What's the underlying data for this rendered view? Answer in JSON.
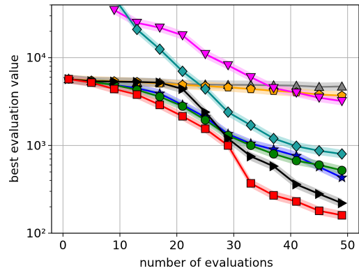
{
  "chart_data": {
    "type": "line",
    "xlabel": "number of evaluations",
    "ylabel": "best evaluation value",
    "xlim": [
      -2,
      52
    ],
    "ylim": [
      100,
      40000
    ],
    "yscale": "log",
    "grid": true,
    "x_ticks": [
      0,
      10,
      20,
      30,
      40,
      50
    ],
    "x_tick_labels": [
      "0",
      "10",
      "20",
      "30",
      "40",
      "50"
    ],
    "y_ticks": [
      100,
      1000,
      10000
    ],
    "y_tick_labels": [
      "10²",
      "10³",
      "10⁴"
    ],
    "series": [
      {
        "marker": "triangle-up",
        "color": "#808080",
        "markerColor": "#808080",
        "bandColor": "#b0b0b0",
        "x": [
          1,
          5,
          9,
          13,
          17,
          21,
          25,
          29,
          33,
          37,
          41,
          45,
          49
        ],
        "y": [
          5700,
          5400,
          5300,
          5250,
          5200,
          5000,
          4950,
          4900,
          4900,
          4850,
          4800,
          4650,
          4700
        ]
      },
      {
        "marker": "pentagon",
        "color": "#ffa500",
        "markerColor": "#ffa500",
        "bandColor": "#ffcc80",
        "x": [
          1,
          5,
          9,
          13,
          17,
          21,
          25,
          29,
          33,
          37,
          41,
          45,
          49
        ],
        "y": [
          5700,
          5500,
          5400,
          5300,
          5100,
          4900,
          4750,
          4600,
          4400,
          4200,
          4050,
          3800,
          3700
        ]
      },
      {
        "marker": "triangle-down",
        "color": "#ff00ff",
        "markerColor": "#ff00ff",
        "bandColor": "#ff9bff",
        "x": [
          9,
          13,
          17,
          21,
          25,
          29,
          33,
          37,
          41,
          45,
          49
        ],
        "y": [
          35000,
          25000,
          22000,
          18000,
          11000,
          8200,
          6000,
          4500,
          4000,
          3500,
          3200
        ]
      },
      {
        "marker": "diamond",
        "color": "#008b8b",
        "markerColor": "#20a0a0",
        "bandColor": "#7ecfcf",
        "x": [
          9,
          13,
          17,
          21,
          25,
          29,
          33,
          37,
          41,
          45,
          49
        ],
        "y": [
          48000,
          21000,
          12500,
          7000,
          4400,
          2400,
          1700,
          1200,
          980,
          870,
          800
        ]
      },
      {
        "marker": "star",
        "color": "#0000ff",
        "markerColor": "#0000cc",
        "bandColor": "#8080ff",
        "x": [
          1,
          5,
          9,
          13,
          17,
          21,
          25,
          29,
          33,
          37,
          41,
          45,
          49
        ],
        "y": [
          5700,
          5300,
          4900,
          4500,
          3900,
          2900,
          2100,
          1350,
          1050,
          900,
          760,
          570,
          430
        ]
      },
      {
        "marker": "circle",
        "color": "#008000",
        "markerColor": "#008000",
        "bandColor": "#80c080",
        "x": [
          1,
          5,
          9,
          13,
          17,
          21,
          25,
          29,
          33,
          37,
          41,
          45,
          49
        ],
        "y": [
          5700,
          5300,
          4900,
          4300,
          3600,
          2800,
          1950,
          1300,
          1000,
          800,
          670,
          600,
          520
        ]
      },
      {
        "marker": "triangle-right",
        "color": "#000000",
        "markerColor": "#000000",
        "bandColor": "#a0a0a0",
        "x": [
          1,
          5,
          9,
          13,
          17,
          21,
          25,
          29,
          33,
          37,
          41,
          45,
          49
        ],
        "y": [
          5700,
          5400,
          5350,
          5300,
          5200,
          4400,
          2400,
          1200,
          750,
          580,
          360,
          280,
          220
        ]
      },
      {
        "marker": "square",
        "color": "#ff0000",
        "markerColor": "#ff0000",
        "bandColor": "#ff9090",
        "x": [
          1,
          5,
          9,
          13,
          17,
          21,
          25,
          29,
          33,
          37,
          41,
          45,
          49
        ],
        "y": [
          5700,
          5200,
          4400,
          3800,
          2900,
          2150,
          1550,
          1000,
          370,
          270,
          230,
          180,
          160
        ]
      }
    ]
  }
}
